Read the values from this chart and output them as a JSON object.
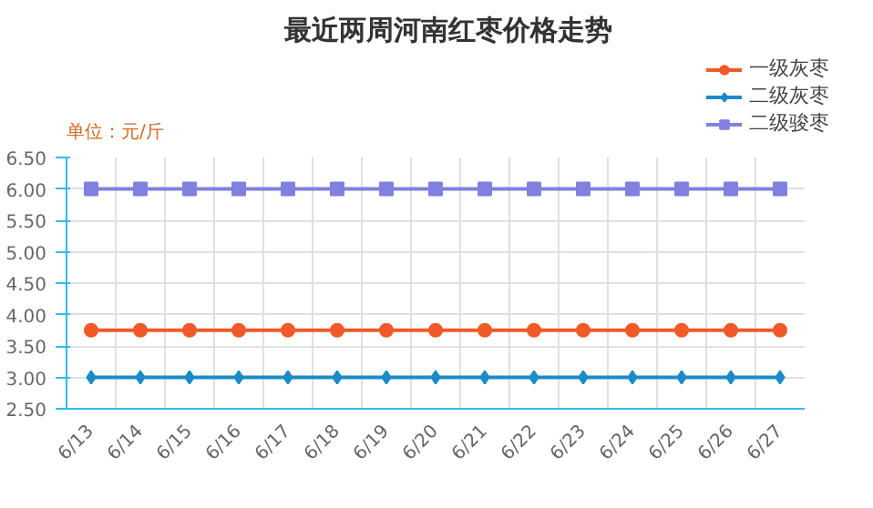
{
  "chart_data": {
    "type": "line",
    "title": "最近两周河南红枣价格走势",
    "ylabel": "单位：元/斤",
    "categories": [
      "6/13",
      "6/14",
      "6/15",
      "6/16",
      "6/17",
      "6/18",
      "6/19",
      "6/20",
      "6/21",
      "6/22",
      "6/23",
      "6/24",
      "6/25",
      "6/26",
      "6/27"
    ],
    "series": [
      {
        "name": "一级灰枣",
        "color": "#f05a28",
        "marker": "circle",
        "values": [
          3.75,
          3.75,
          3.75,
          3.75,
          3.75,
          3.75,
          3.75,
          3.75,
          3.75,
          3.75,
          3.75,
          3.75,
          3.75,
          3.75,
          3.75
        ]
      },
      {
        "name": "二级灰枣",
        "color": "#1a8bc8",
        "marker": "diamond",
        "values": [
          3.0,
          3.0,
          3.0,
          3.0,
          3.0,
          3.0,
          3.0,
          3.0,
          3.0,
          3.0,
          3.0,
          3.0,
          3.0,
          3.0,
          3.0
        ]
      },
      {
        "name": "二级骏枣",
        "color": "#8080e0",
        "marker": "square",
        "values": [
          6.0,
          6.0,
          6.0,
          6.0,
          6.0,
          6.0,
          6.0,
          6.0,
          6.0,
          6.0,
          6.0,
          6.0,
          6.0,
          6.0,
          6.0
        ]
      }
    ],
    "ylim": [
      2.5,
      6.5
    ],
    "yticks": [
      {
        "value": 2.5,
        "label": "2.50"
      },
      {
        "value": 3.0,
        "label": "3.00"
      },
      {
        "value": 3.5,
        "label": "3.50"
      },
      {
        "value": 4.0,
        "label": "4.00"
      },
      {
        "value": 4.5,
        "label": "4.50"
      },
      {
        "value": 5.0,
        "label": "5.00"
      },
      {
        "value": 5.5,
        "label": "5.50"
      },
      {
        "value": 6.0,
        "label": "6.00"
      },
      {
        "value": 6.5,
        "label": "6.50"
      }
    ],
    "grid": true,
    "legend": "top right",
    "line_style": "solid"
  }
}
